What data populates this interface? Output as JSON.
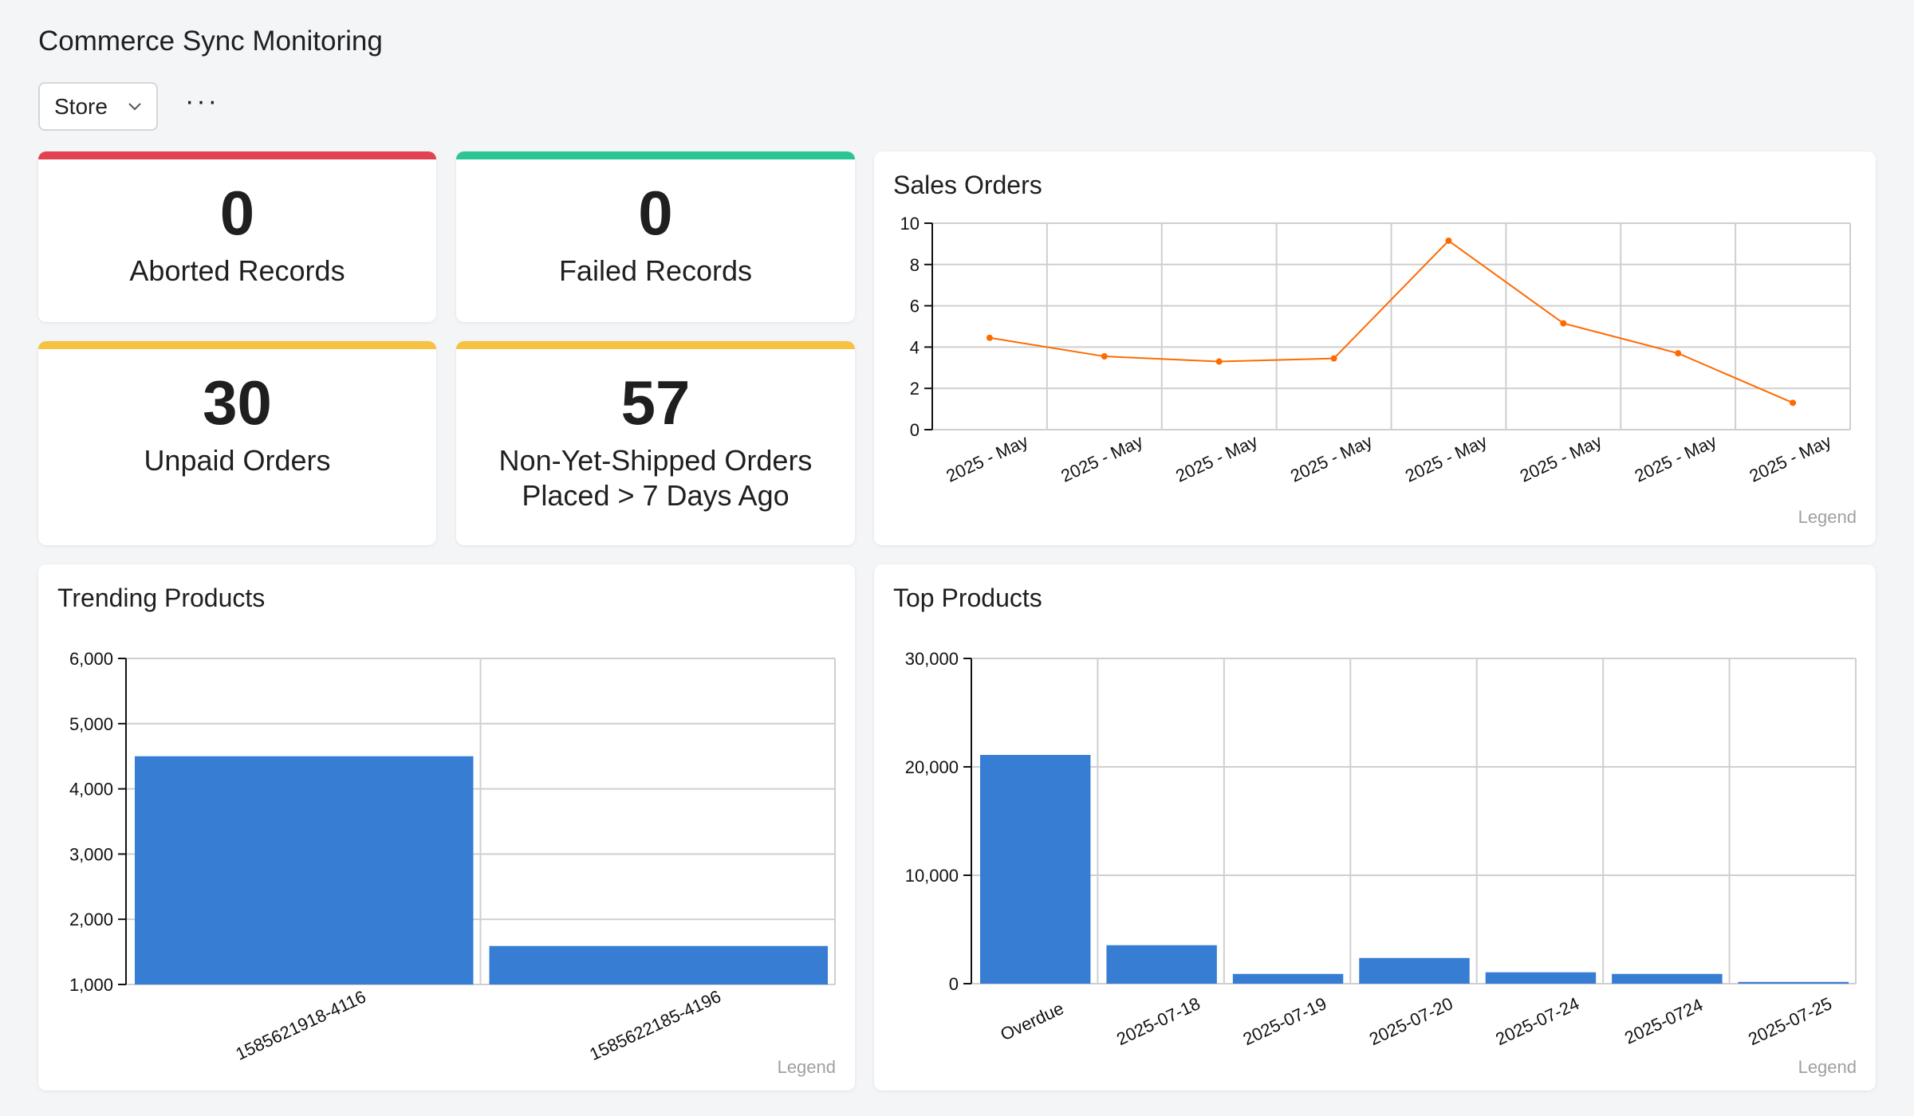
{
  "header": {
    "title": "Commerce Sync Monitoring",
    "store_filter": "Store",
    "more_label": "···"
  },
  "stats": [
    {
      "value": "0",
      "label": "Aborted Records",
      "color": "#e0434f"
    },
    {
      "value": "0",
      "label": "Failed Records",
      "color": "#2bc494"
    },
    {
      "value": "30",
      "label": "Unpaid Orders",
      "color": "#f5c242"
    },
    {
      "value": "57",
      "label": "Non-Yet-Shipped Orders Placed > 7 Days Ago",
      "color": "#f5c242"
    }
  ],
  "chart_data": [
    {
      "id": "sales",
      "type": "line",
      "title": "Sales Orders",
      "legend": "Legend",
      "color": "#ff6a00",
      "categories": [
        "2025 - May",
        "2025 - May",
        "2025 - May",
        "2025 - May",
        "2025 - May",
        "2025 - May",
        "2025 - May",
        "2025 - May"
      ],
      "values": [
        4.45,
        3.55,
        3.3,
        3.45,
        9.15,
        5.15,
        3.7,
        1.3
      ],
      "ylim": [
        0,
        10
      ],
      "yticks": [
        "0",
        "2",
        "4",
        "6",
        "8",
        "10"
      ],
      "grid": true
    },
    {
      "id": "trending",
      "type": "bar",
      "title": "Trending Products",
      "legend": "Legend",
      "color": "#377dd3",
      "categories": [
        "1585621918-4116",
        "1585622185-4196"
      ],
      "values": [
        4500,
        1590
      ],
      "ylim": [
        1000,
        6000
      ],
      "yticks": [
        "1,000",
        "2,000",
        "3,000",
        "4,000",
        "5,000",
        "6,000"
      ],
      "grid": true
    },
    {
      "id": "top",
      "type": "bar",
      "title": "Top Products",
      "legend": "Legend",
      "color": "#377dd3",
      "categories": [
        "Overdue",
        "2025-07-18",
        "2025-07-19",
        "2025-07-20",
        "2025-07-24",
        "2025-0724",
        "2025-07-25"
      ],
      "values": [
        21100,
        3550,
        900,
        2370,
        1050,
        900,
        160
      ],
      "ylim": [
        0,
        30000
      ],
      "yticks": [
        "0",
        "10,000",
        "20,000",
        "30,000"
      ],
      "grid": true
    }
  ]
}
